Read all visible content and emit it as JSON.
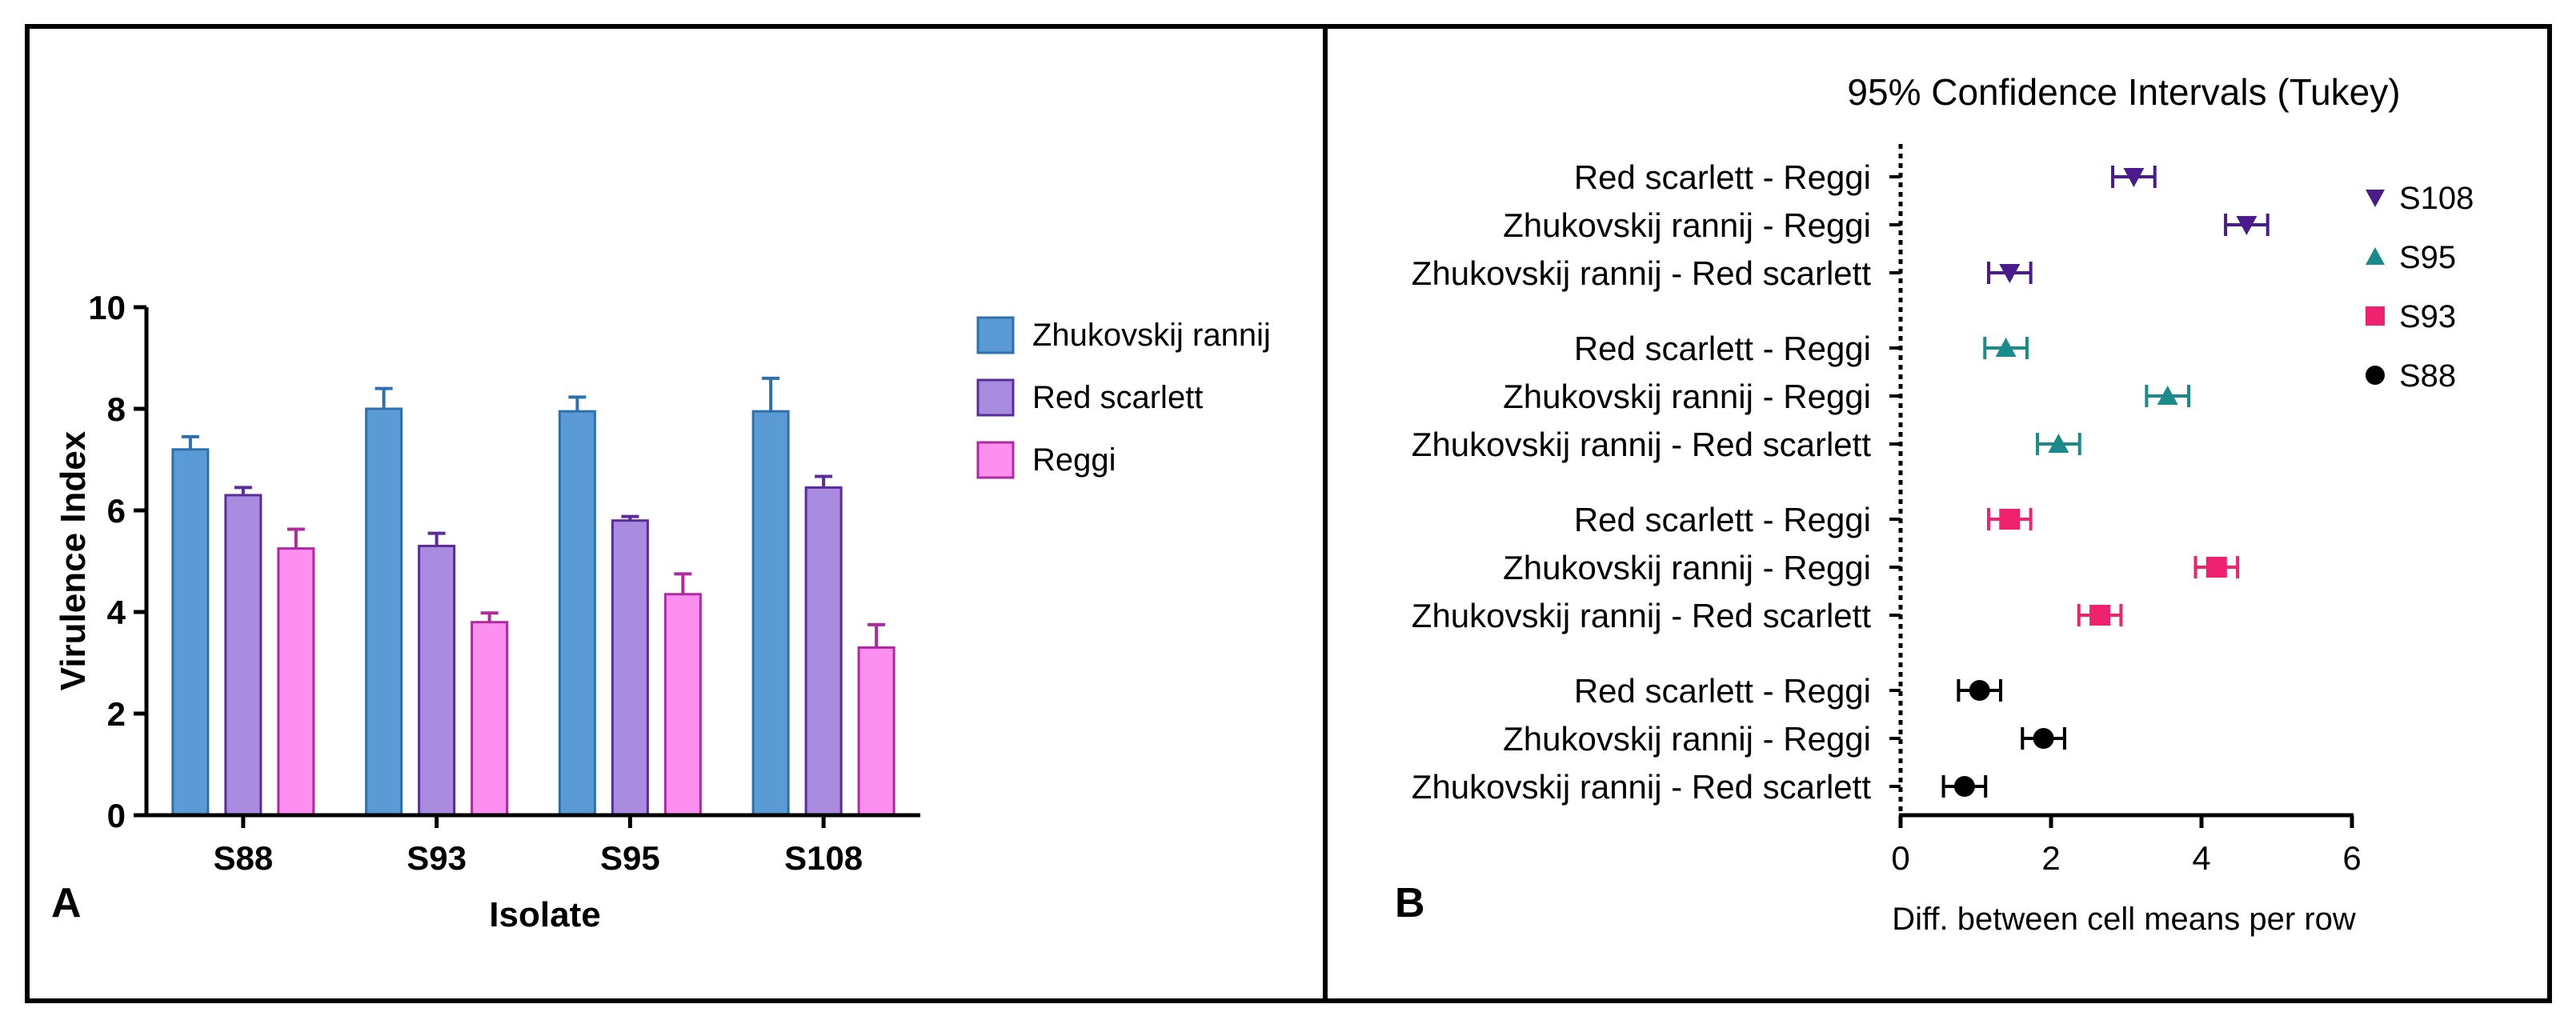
{
  "chart_data": [
    {
      "type": "bar",
      "panel_label": "A",
      "xlabel": "Isolate",
      "ylabel": "Virulence Index",
      "ylim": [
        0,
        10
      ],
      "yticks": [
        0,
        2,
        4,
        6,
        8,
        10
      ],
      "categories": [
        "S88",
        "S93",
        "S95",
        "S108"
      ],
      "legend_position": "right",
      "series": [
        {
          "name": "Zhukovskij rannij",
          "color": "#5b9bd5",
          "edge": "#2e6fae",
          "values": [
            7.2,
            8.0,
            7.95,
            7.95
          ],
          "errors": [
            0.25,
            0.4,
            0.28,
            0.65
          ]
        },
        {
          "name": "Red scarlett",
          "color": "#a98be0",
          "edge": "#5a2d9a",
          "values": [
            6.3,
            5.3,
            5.8,
            6.45
          ],
          "errors": [
            0.15,
            0.25,
            0.08,
            0.22
          ]
        },
        {
          "name": "Reggi",
          "color": "#fd8ff0",
          "edge": "#b02a9e",
          "values": [
            5.25,
            3.8,
            4.35,
            3.3
          ],
          "errors": [
            0.38,
            0.18,
            0.4,
            0.45
          ]
        }
      ]
    },
    {
      "type": "scatter",
      "panel_label": "B",
      "title": "95% Confidence Intervals (Tukey)",
      "xlabel": "Diff. between cell means per row",
      "xlim": [
        0,
        6
      ],
      "xticks": [
        0,
        2,
        4,
        6
      ],
      "legend_position": "right",
      "rows": [
        "Red scarlett - Reggi",
        "Zhukovskij rannij - Reggi",
        "Zhukovskij rannij - Red scarlett"
      ],
      "groups": [
        {
          "name": "S108",
          "color": "#4b1a8c",
          "marker": "triangle-down",
          "values": [
            3.1,
            4.6,
            1.45
          ],
          "ci_half_width": [
            0.28,
            0.28,
            0.28
          ]
        },
        {
          "name": "S95",
          "color": "#1a8a8a",
          "marker": "triangle-up",
          "values": [
            1.4,
            3.55,
            2.1
          ],
          "ci_half_width": [
            0.28,
            0.28,
            0.28
          ]
        },
        {
          "name": "S93",
          "color": "#f0216e",
          "marker": "square",
          "values": [
            1.45,
            4.2,
            2.65
          ],
          "ci_half_width": [
            0.28,
            0.28,
            0.28
          ]
        },
        {
          "name": "S88",
          "color": "#000000",
          "marker": "circle",
          "values": [
            1.05,
            1.9,
            0.85
          ],
          "ci_half_width": [
            0.28,
            0.28,
            0.28
          ]
        }
      ]
    }
  ]
}
